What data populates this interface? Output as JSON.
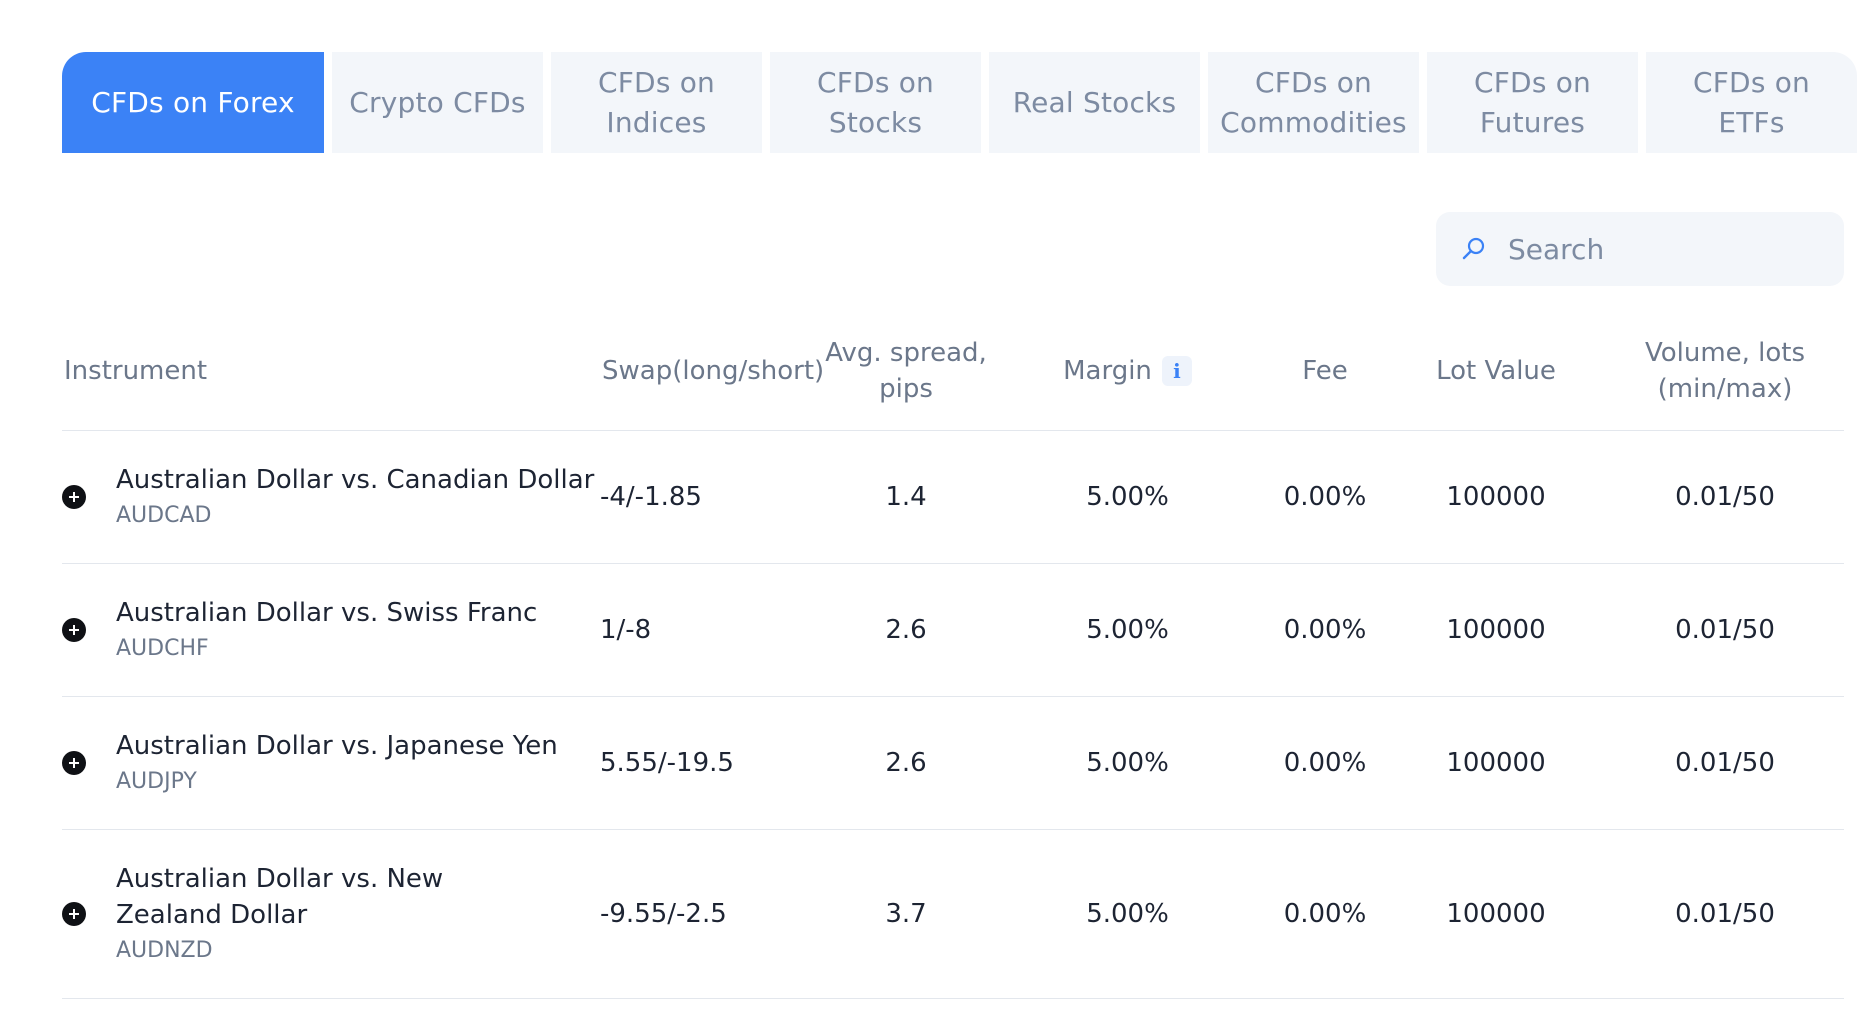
{
  "tabs": [
    {
      "label": "CFDs on Forex",
      "active": true
    },
    {
      "label": "Crypto CFDs",
      "active": false
    },
    {
      "label": "CFDs on\nIndices",
      "active": false
    },
    {
      "label": "CFDs on\nStocks",
      "active": false
    },
    {
      "label": "Real Stocks",
      "active": false
    },
    {
      "label": "CFDs on\nCommodities",
      "active": false
    },
    {
      "label": "CFDs on\nFutures",
      "active": false
    },
    {
      "label": "CFDs on ETFs",
      "active": false
    }
  ],
  "search": {
    "placeholder": "Search",
    "icon": "search-icon"
  },
  "table": {
    "headers": {
      "instrument": "Instrument",
      "swap": "Swap(long/short)",
      "spread": "Avg. spread,\npips",
      "margin": "Margin",
      "fee": "Fee",
      "lot_value": "Lot Value",
      "volume": "Volume, lots\n(min/max)"
    },
    "rows": [
      {
        "name": "Australian Dollar vs. Canadian Dollar",
        "code": "AUDCAD",
        "swap": "-4/-1.85",
        "spread": "1.4",
        "margin": "5.00%",
        "fee": "0.00%",
        "lot_value": "100000",
        "volume": "0.01/50"
      },
      {
        "name": "Australian Dollar vs. Swiss Franc",
        "code": "AUDCHF",
        "swap": "1/-8",
        "spread": "2.6",
        "margin": "5.00%",
        "fee": "0.00%",
        "lot_value": "100000",
        "volume": "0.01/50"
      },
      {
        "name": "Australian Dollar vs. Japanese Yen",
        "code": "AUDJPY",
        "swap": "5.55/-19.5",
        "spread": "2.6",
        "margin": "5.00%",
        "fee": "0.00%",
        "lot_value": "100000",
        "volume": "0.01/50"
      },
      {
        "name": "Australian Dollar vs. New Zealand Dollar",
        "code": "AUDNZD",
        "swap": "-9.55/-2.5",
        "spread": "3.7",
        "margin": "5.00%",
        "fee": "0.00%",
        "lot_value": "100000",
        "volume": "0.01/50"
      }
    ]
  },
  "colors": {
    "accent": "#3b82f6",
    "tab_bg": "#f3f6fa",
    "tab_text": "#7d8ba2",
    "divider": "#e3e7ed"
  }
}
